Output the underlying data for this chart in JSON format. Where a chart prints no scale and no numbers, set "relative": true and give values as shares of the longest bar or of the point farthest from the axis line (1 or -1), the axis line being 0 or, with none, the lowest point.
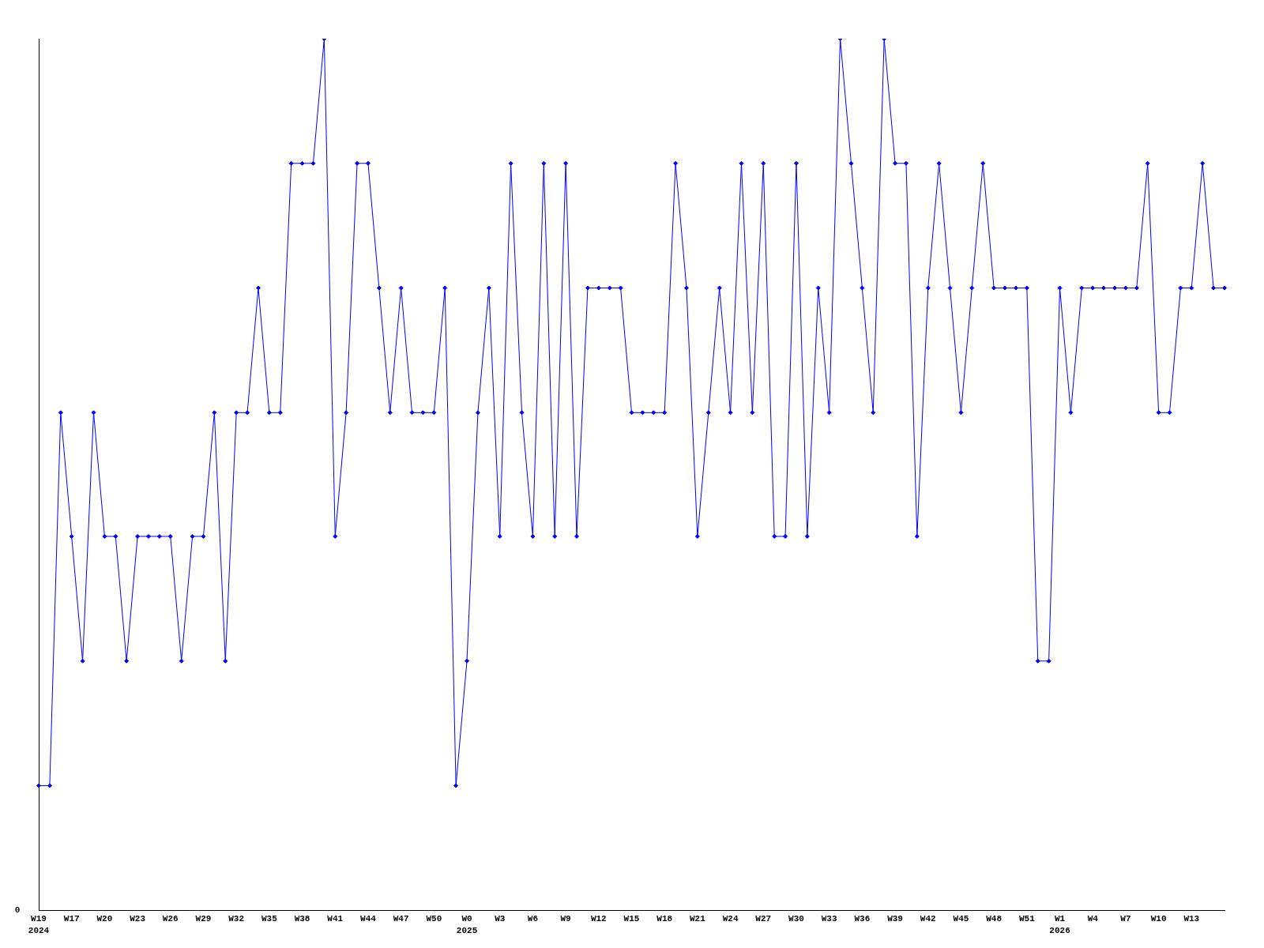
{
  "chart_data": {
    "type": "line",
    "relative": true,
    "marker": "diamond",
    "line_style": "solid",
    "categories": [
      "W19\n2024",
      null,
      null,
      "W17",
      null,
      null,
      "W20",
      null,
      null,
      "W23",
      null,
      null,
      "W26",
      null,
      null,
      "W29",
      null,
      null,
      "W32",
      null,
      null,
      "W35",
      null,
      null,
      "W38",
      null,
      null,
      "W41",
      null,
      null,
      "W44",
      null,
      null,
      "W47",
      null,
      null,
      "W50",
      null,
      null,
      "W0\n2025",
      null,
      null,
      "W3",
      null,
      null,
      "W6",
      null,
      null,
      "W9",
      null,
      null,
      "W12",
      null,
      null,
      "W15",
      null,
      null,
      "W18",
      null,
      null,
      "W21",
      null,
      null,
      "W24",
      null,
      null,
      "W27",
      null,
      null,
      "W30",
      null,
      null,
      "W33",
      null,
      null,
      "W36",
      null,
      null,
      "W39",
      null,
      null,
      "W42",
      null,
      null,
      "W45",
      null,
      null,
      "W48",
      null,
      null,
      "W51",
      null,
      null,
      "W1\n2026",
      null,
      null,
      "W4",
      null,
      null,
      "W7",
      null,
      null,
      "W10",
      null,
      null,
      "W13",
      null,
      null,
      null
    ],
    "series": [
      {
        "color": "#0000ff",
        "values": [
          0.143,
          0.143,
          0.571,
          0.429,
          0.286,
          0.571,
          0.429,
          0.429,
          0.286,
          0.429,
          0.429,
          0.429,
          0.429,
          0.286,
          0.429,
          0.429,
          0.571,
          0.286,
          0.571,
          0.571,
          0.714,
          0.571,
          0.571,
          0.857,
          0.857,
          0.857,
          1,
          0.429,
          0.571,
          0.857,
          0.857,
          0.714,
          0.571,
          0.714,
          0.571,
          0.571,
          0.571,
          0.714,
          0.143,
          0.286,
          0.571,
          0.714,
          0.429,
          0.857,
          0.571,
          0.429,
          0.857,
          0.429,
          0.857,
          0.429,
          0.714,
          0.714,
          0.714,
          0.714,
          0.571,
          0.571,
          0.571,
          0.571,
          0.857,
          0.714,
          0.429,
          0.571,
          0.714,
          0.571,
          0.857,
          0.571,
          0.857,
          0.429,
          0.429,
          0.857,
          0.429,
          0.714,
          0.571,
          1,
          0.857,
          0.714,
          0.571,
          1,
          0.857,
          0.857,
          0.429,
          0.714,
          0.857,
          0.714,
          0.571,
          0.714,
          0.857,
          0.714,
          0.714,
          0.714,
          0.714,
          0.286,
          0.286,
          0.714,
          0.571,
          0.714,
          0.714,
          0.714,
          0.714,
          0.714,
          0.714,
          0.857,
          0.571,
          0.571,
          0.714,
          0.714,
          0.857,
          0.714,
          0.714
        ]
      }
    ],
    "annotations": [
      "0"
    ]
  }
}
